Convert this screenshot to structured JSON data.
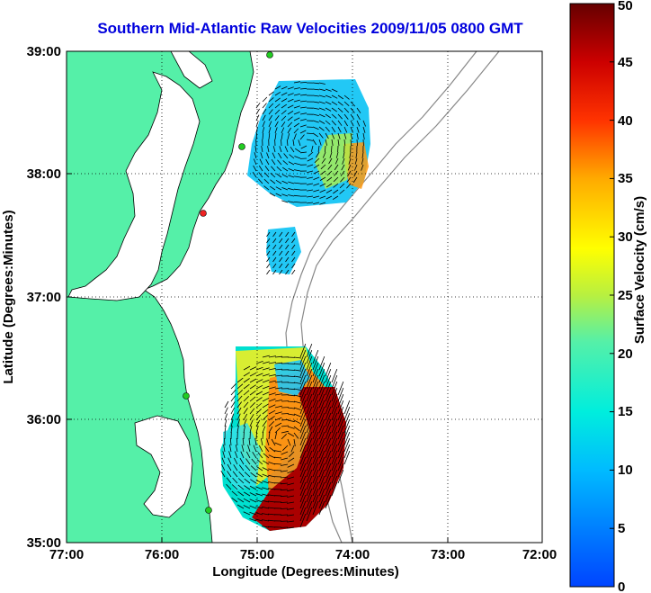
{
  "title": "Southern Mid-Atlantic Raw Velocities 2009/11/05 0800 GMT",
  "map": {
    "xlabel": "Longitude (Degrees:Minutes)",
    "ylabel": "Latitude (Degrees:Minutes)",
    "x_ticks": [
      "77:00",
      "76:00",
      "75:00",
      "74:00",
      "73:00",
      "72:00"
    ],
    "y_ticks": [
      "39:00",
      "38:00",
      "37:00",
      "36:00",
      "35:00"
    ],
    "lon_range": [
      -77,
      -72
    ],
    "lat_range": [
      35,
      39
    ],
    "grid": true
  },
  "colorbar": {
    "label": "Surface Velocity (cm/s)",
    "ticks": [
      "0",
      "5",
      "10",
      "15",
      "20",
      "25",
      "30",
      "35",
      "40",
      "45",
      "50"
    ],
    "range": [
      0,
      50
    ]
  },
  "colors": {
    "land": "#55f0a8",
    "sea": "#ffffff",
    "title": "#0000dd",
    "station_green": "#22cc22",
    "station_red": "#ee2222"
  }
}
